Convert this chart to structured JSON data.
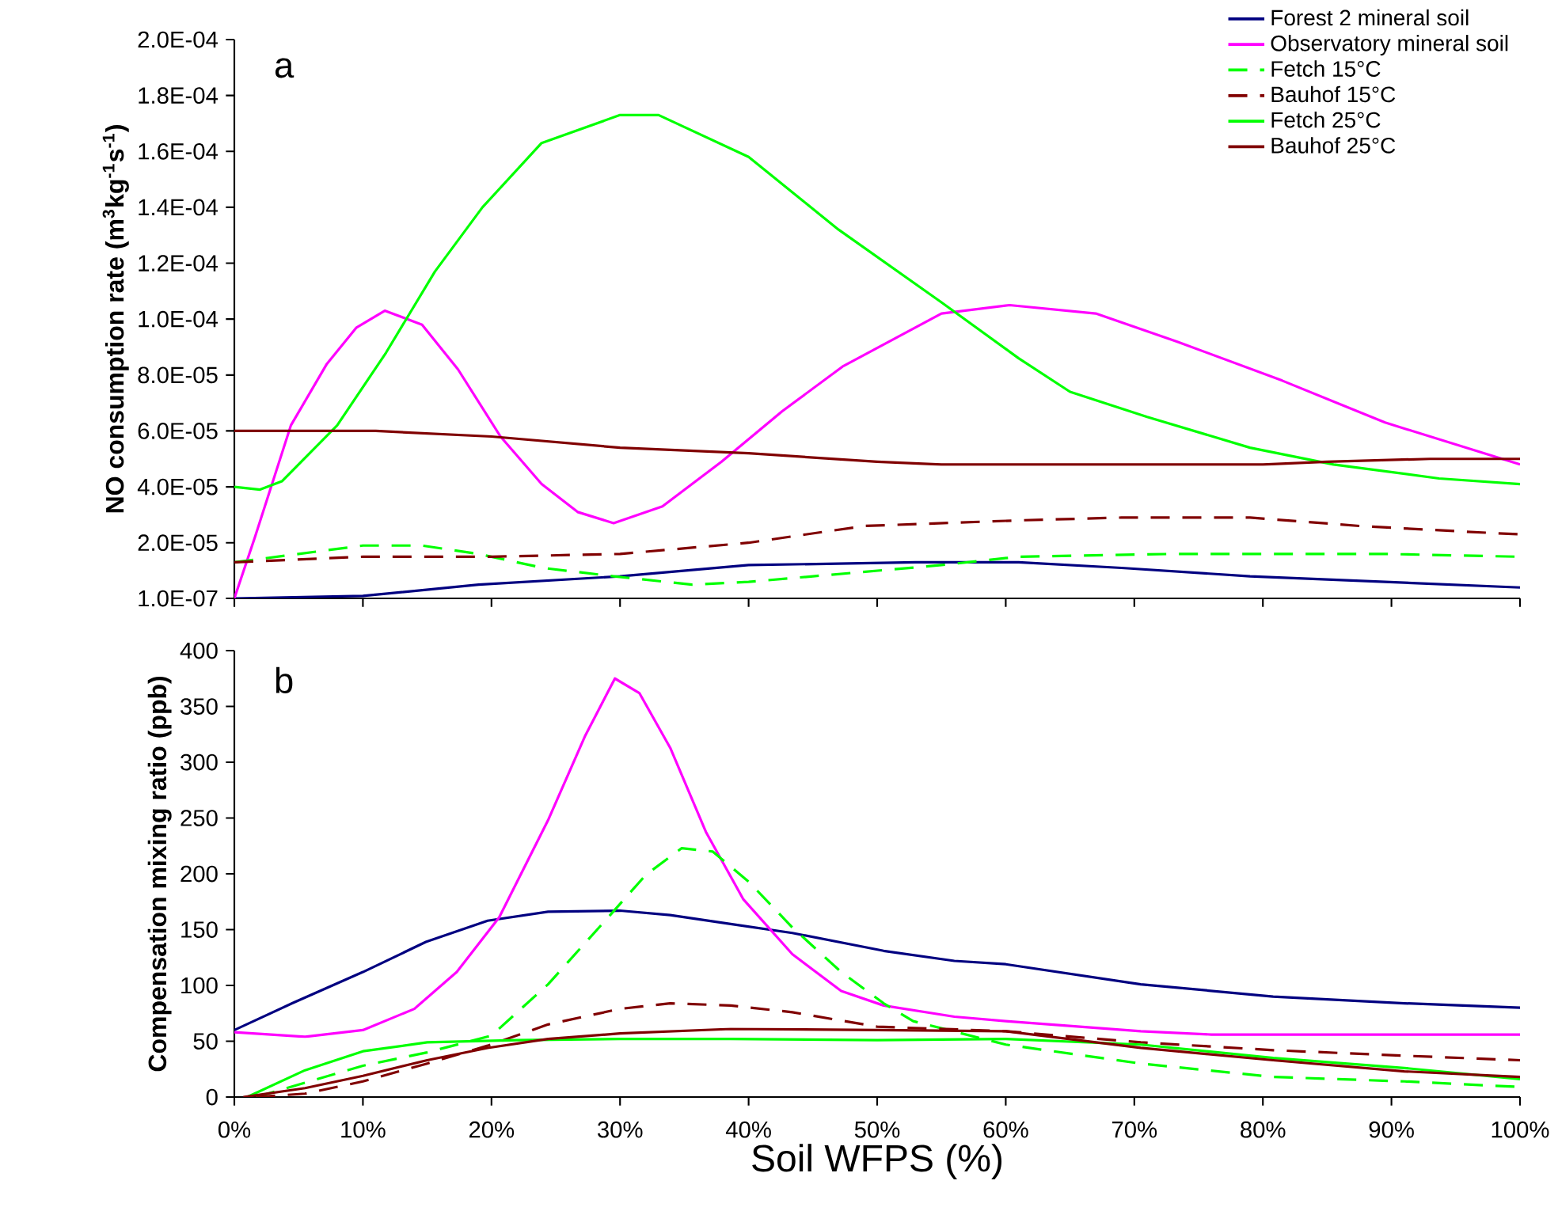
{
  "chart_data": [
    {
      "type": "line",
      "ylabel": "NO consumption rate (m$^{3}$kg$^{-1}$s$^{-1}$)",
      "annotations": [
        "a"
      ],
      "xlim": [
        0,
        100
      ],
      "xticks": [
        {
          "value": 0,
          "label": null
        },
        {
          "value": 10,
          "label": null
        },
        {
          "value": 20,
          "label": null
        },
        {
          "value": 30,
          "label": null
        },
        {
          "value": 40,
          "label": null
        },
        {
          "value": 50,
          "label": null
        },
        {
          "value": 60,
          "label": null
        },
        {
          "value": 70,
          "label": null
        },
        {
          "value": 80,
          "label": null
        },
        {
          "value": 90,
          "label": null
        },
        {
          "value": 100,
          "label": null
        }
      ],
      "ylim": [
        1e-07,
        0.0002
      ],
      "yticks": [
        {
          "value": 1e-07,
          "label": "1.0E-07"
        },
        {
          "value": 2e-05,
          "label": "2.0E-05"
        },
        {
          "value": 4e-05,
          "label": "4.0E-05"
        },
        {
          "value": 6e-05,
          "label": "6.0E-05"
        },
        {
          "value": 8e-05,
          "label": "8.0E-05"
        },
        {
          "value": 0.0001,
          "label": "1.0E-04"
        },
        {
          "value": 0.00012,
          "label": "1.2E-04"
        },
        {
          "value": 0.00014,
          "label": "1.4E-04"
        },
        {
          "value": 0.00016,
          "label": "1.6E-04"
        },
        {
          "value": 0.00018,
          "label": "1.8E-04"
        },
        {
          "value": 0.0002,
          "label": "2.0E-04"
        }
      ],
      "tick_labels": "y",
      "legend": "top right",
      "grid": false,
      "marker": "none",
      "series": [
        {
          "name": "Forest 2 mineral soil",
          "color": "#000080",
          "line_style": "solid",
          "x": [
            0,
            10,
            19,
            30,
            40,
            53,
            61,
            69,
            79,
            89.5,
            100
          ],
          "values": [
            1e-07,
            1e-06,
            5e-06,
            8e-06,
            1.2e-05,
            1.3e-05,
            1.3e-05,
            1.1e-05,
            8e-06,
            6e-06,
            4e-06
          ]
        },
        {
          "name": "Observatory mineral soil",
          "color": "#ff00ff",
          "line_style": "solid",
          "x": [
            0,
            1.6,
            4.4,
            7.2,
            9.5,
            11.7,
            14.6,
            17.4,
            20.7,
            23.9,
            26.7,
            29.5,
            33.3,
            37.9,
            42.6,
            47.3,
            55,
            60.3,
            67,
            73.3,
            81.5,
            89.5,
            100
          ],
          "values": [
            1e-07,
            2.2e-05,
            6.2e-05,
            8.4e-05,
            9.7e-05,
            0.000103,
            9.8e-05,
            8.2e-05,
            5.8e-05,
            4.1e-05,
            3.1e-05,
            2.7e-05,
            3.3e-05,
            4.9e-05,
            6.7e-05,
            8.3e-05,
            0.000102,
            0.000105,
            0.000102,
            9.2e-05,
            7.8e-05,
            6.3e-05,
            4.8e-05
          ]
        },
        {
          "name": "Fetch 15°C",
          "color": "#00ff00",
          "line_style": "dashed",
          "x": [
            0,
            10,
            14.6,
            19,
            24,
            29.5,
            35.6,
            40,
            45,
            55,
            61,
            73,
            89.5,
            100
          ],
          "values": [
            1.3e-05,
            1.9e-05,
            1.9e-05,
            1.6e-05,
            1.1e-05,
            8e-06,
            5e-06,
            6e-06,
            8e-06,
            1.2e-05,
            1.5e-05,
            1.6e-05,
            1.6e-05,
            1.5e-05
          ]
        },
        {
          "name": "Bauhof 15°C",
          "color": "#800000",
          "line_style": "dashed",
          "x": [
            0,
            10,
            20,
            30,
            40,
            49,
            61,
            69,
            79,
            87.5,
            95.6,
            100
          ],
          "values": [
            1.3e-05,
            1.5e-05,
            1.5e-05,
            1.6e-05,
            2e-05,
            2.6e-05,
            2.8e-05,
            2.9e-05,
            2.9e-05,
            2.6e-05,
            2.4e-05,
            2.3e-05
          ]
        },
        {
          "name": "Fetch 25°C",
          "color": "#00ff00",
          "line_style": "solid",
          "x": [
            0,
            2,
            3.7,
            8,
            11.8,
            15.6,
            19.3,
            23.9,
            30,
            33,
            40,
            47,
            55,
            61,
            65,
            71,
            79,
            85.5,
            93.7,
            100
          ],
          "values": [
            4e-05,
            3.9e-05,
            4.2e-05,
            6.2e-05,
            8.8e-05,
            0.000117,
            0.00014,
            0.000163,
            0.000173,
            0.000173,
            0.000158,
            0.000132,
            0.000106,
            8.6e-05,
            7.4e-05,
            6.5e-05,
            5.4e-05,
            4.8e-05,
            4.3e-05,
            4.1e-05
          ]
        },
        {
          "name": "Bauhof 25°C",
          "color": "#800000",
          "line_style": "solid",
          "x": [
            0,
            11,
            20,
            30,
            40,
            50,
            55,
            60,
            80,
            85,
            93,
            100
          ],
          "values": [
            6e-05,
            6e-05,
            5.8e-05,
            5.4e-05,
            5.2e-05,
            4.9e-05,
            4.8e-05,
            4.8e-05,
            4.8e-05,
            4.9e-05,
            5e-05,
            5e-05
          ]
        }
      ]
    },
    {
      "type": "line",
      "xlabel": "Soil WFPS (%)",
      "ylabel": "Compensation mixing ratio (ppb)",
      "annotations": [
        "b"
      ],
      "xlim": [
        0,
        100
      ],
      "xticks": [
        {
          "value": 0,
          "label": "0%"
        },
        {
          "value": 10,
          "label": "10%"
        },
        {
          "value": 20,
          "label": "20%"
        },
        {
          "value": 30,
          "label": "30%"
        },
        {
          "value": 40,
          "label": "40%"
        },
        {
          "value": 50,
          "label": "50%"
        },
        {
          "value": 60,
          "label": "60%"
        },
        {
          "value": 70,
          "label": "70%"
        },
        {
          "value": 80,
          "label": "80%"
        },
        {
          "value": 90,
          "label": "90%"
        },
        {
          "value": 100,
          "label": "100%"
        }
      ],
      "ylim": [
        0,
        400
      ],
      "yticks": [
        0,
        50,
        100,
        150,
        200,
        250,
        300,
        350,
        400
      ],
      "legend": false,
      "grid": false,
      "marker": "none",
      "series": [
        {
          "color": "#000080",
          "line_style": "solid",
          "x": [
            0,
            4.5,
            10,
            14.9,
            19.7,
            24.4,
            30,
            33.9,
            38.6,
            43.4,
            50.5,
            56,
            60,
            70.5,
            80.8,
            91,
            100
          ],
          "values": [
            60,
            84,
            112,
            139,
            158,
            166,
            167,
            163,
            155,
            147,
            131,
            122,
            119,
            101,
            90,
            84,
            80
          ]
        },
        {
          "color": "#ff00ff",
          "line_style": "solid",
          "x": [
            0,
            5.5,
            10,
            14,
            17.3,
            20.6,
            24.4,
            27.3,
            29.6,
            31.5,
            33.9,
            36.7,
            39.6,
            43.4,
            47.2,
            50.5,
            56,
            60,
            70.5,
            76,
            100
          ],
          "values": [
            58,
            54,
            60,
            79,
            112,
            161,
            248,
            324,
            375,
            362,
            313,
            237,
            177,
            128,
            95,
            82,
            72,
            68,
            59,
            56,
            56
          ]
        },
        {
          "color": "#00ff00",
          "line_style": "dashed",
          "x": [
            1.7,
            10,
            15,
            20,
            24.4,
            29,
            32,
            34.8,
            37.2,
            40,
            43.4,
            47.2,
            50.5,
            52.8,
            60,
            70.5,
            80.8,
            91,
            100
          ],
          "values": [
            0,
            28,
            40,
            55,
            101,
            160,
            199,
            223,
            220,
            193,
            152,
            112,
            84,
            68,
            47,
            30,
            18,
            14,
            9
          ]
        },
        {
          "color": "#800000",
          "line_style": "dashed",
          "x": [
            1.7,
            5.5,
            10,
            15,
            19.7,
            24.4,
            30,
            33.9,
            38.6,
            43.4,
            50,
            60,
            70.5,
            80.8,
            91,
            100
          ],
          "values": [
            0,
            3,
            14,
            30,
            46,
            65,
            79,
            84,
            82,
            76,
            63,
            59,
            49,
            42,
            37,
            33
          ]
        },
        {
          "color": "#00ff00",
          "line_style": "solid",
          "x": [
            1,
            5.5,
            10,
            15,
            22,
            30,
            38.6,
            50,
            60,
            70.5,
            80.8,
            91,
            100
          ],
          "values": [
            0,
            24,
            41,
            49,
            51,
            52,
            52,
            51,
            52,
            47,
            35,
            26,
            16
          ]
        },
        {
          "color": "#800000",
          "line_style": "solid",
          "x": [
            0.7,
            5.5,
            10,
            15,
            19.7,
            24.4,
            30,
            38.6,
            50,
            60,
            70.5,
            80.8,
            91,
            100
          ],
          "values": [
            0,
            8,
            19,
            33,
            44,
            52,
            57,
            61,
            60,
            59,
            44,
            33,
            23,
            18
          ]
        }
      ]
    }
  ]
}
